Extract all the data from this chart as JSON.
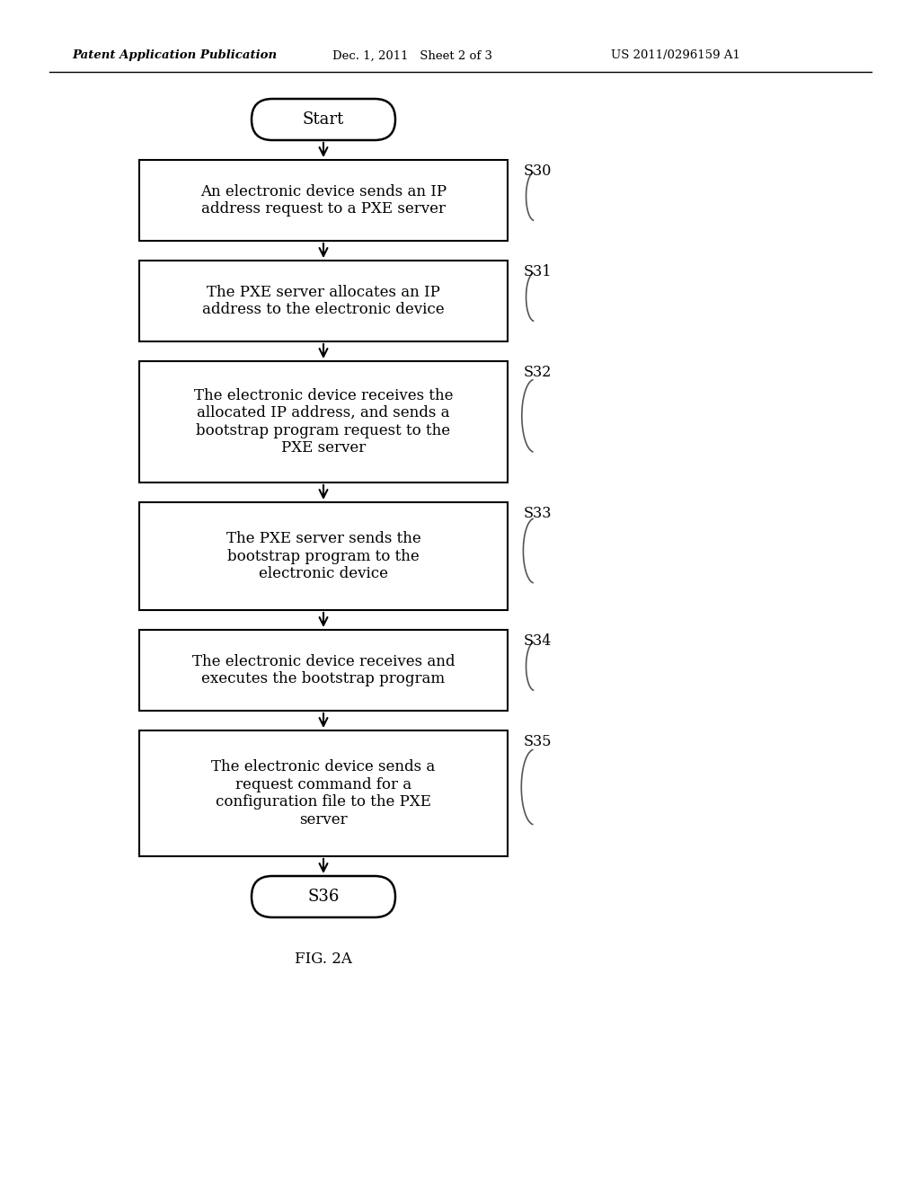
{
  "background_color": "#ffffff",
  "header_left": "Patent Application Publication",
  "header_mid": "Dec. 1, 2011   Sheet 2 of 3",
  "header_right": "US 2011/0296159 A1",
  "caption": "FIG. 2A",
  "start_label": "Start",
  "end_label": "S36",
  "boxes": [
    {
      "label": "S30",
      "text": "An electronic device sends an IP\naddress request to a PXE server"
    },
    {
      "label": "S31",
      "text": "The PXE server allocates an IP\naddress to the electronic device"
    },
    {
      "label": "S32",
      "text": "The electronic device receives the\nallocated IP address, and sends a\nbootstrap program request to the\nPXE server"
    },
    {
      "label": "S33",
      "text": "The PXE server sends the\nbootstrap program to the\nelectronic device"
    },
    {
      "label": "S34",
      "text": "The electronic device receives and\nexecutes the bootstrap program"
    },
    {
      "label": "S35",
      "text": "The electronic device sends a\nrequest command for a\nconfiguration file to the PXE\nserver"
    }
  ]
}
